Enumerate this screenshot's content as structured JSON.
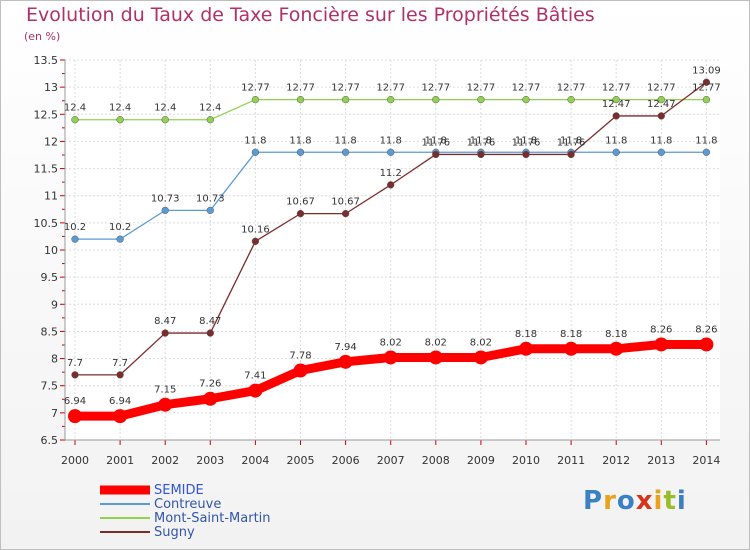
{
  "title": "Evolution du Taux de Taxe Foncière sur les Propriétés Bâties",
  "unit_label": "(en %)",
  "logo": {
    "text": "Proxiti",
    "colors": [
      "#3b7fc4",
      "#e8a21c",
      "#3b7fc4",
      "#d8341c",
      "#e8a21c",
      "#9bbb2a",
      "#3b7fc4"
    ]
  },
  "chart_data": {
    "type": "line",
    "x": [
      "2000",
      "2001",
      "2002",
      "2003",
      "2004",
      "2005",
      "2006",
      "2007",
      "2008",
      "2009",
      "2010",
      "2011",
      "2012",
      "2013",
      "2014"
    ],
    "ylim": [
      6.5,
      13.5
    ],
    "yticks": [
      "6.5",
      "7",
      "7.5",
      "8",
      "8.5",
      "9",
      "9.5",
      "10",
      "10.5",
      "11",
      "11.5",
      "12",
      "12.5",
      "13",
      "13.5"
    ],
    "grid": true,
    "legend_position": "bottom-left",
    "series": [
      {
        "name": "SEMIDE",
        "color": "#ff0000",
        "values": [
          6.94,
          6.94,
          7.15,
          7.26,
          7.41,
          7.78,
          7.94,
          8.02,
          8.02,
          8.02,
          8.18,
          8.18,
          8.18,
          8.26,
          8.26
        ],
        "labels": [
          "6.94",
          "6.94",
          "7.15",
          "7.26",
          "7.41",
          "7.78",
          "7.94",
          "8.02",
          "8.02",
          "8.02",
          "8.18",
          "8.18",
          "8.18",
          "8.26",
          "8.26"
        ]
      },
      {
        "name": "Contreuve",
        "color": "#5b9bd5",
        "values": [
          10.2,
          10.2,
          10.73,
          10.73,
          11.8,
          11.8,
          11.8,
          11.8,
          11.8,
          11.8,
          11.8,
          11.8,
          11.8,
          11.8,
          11.8
        ],
        "labels": [
          "10.2",
          "10.2",
          "10.73",
          "10.73",
          "11.8",
          "11.8",
          "11.8",
          "11.8",
          "11.8",
          "11.8",
          "11.8",
          "11.8",
          "11.8",
          "11.8",
          "11.8"
        ]
      },
      {
        "name": "Mont-Saint-Martin",
        "color": "#92d050",
        "values": [
          12.4,
          12.4,
          12.4,
          12.4,
          12.77,
          12.77,
          12.77,
          12.77,
          12.77,
          12.77,
          12.77,
          12.77,
          12.77,
          12.77,
          12.77
        ],
        "labels": [
          "12.4",
          "12.4",
          "12.4",
          "12.4",
          "12.77",
          "12.77",
          "12.77",
          "12.77",
          "12.77",
          "12.77",
          "12.77",
          "12.77",
          "12.77",
          "12.77",
          "12.77"
        ]
      },
      {
        "name": "Sugny",
        "color": "#7b2c2c",
        "values": [
          7.7,
          7.7,
          8.47,
          8.47,
          10.16,
          10.67,
          10.67,
          11.2,
          11.76,
          11.76,
          11.76,
          11.76,
          12.47,
          12.47,
          13.09
        ],
        "labels": [
          "7.7",
          "7.7",
          "8.47",
          "8.47",
          "10.16",
          "10.67",
          "10.67",
          "11.2",
          "11.76",
          "11.76",
          "11.76",
          "11.76",
          "12.47",
          "12.47",
          "13.09"
        ]
      }
    ]
  }
}
